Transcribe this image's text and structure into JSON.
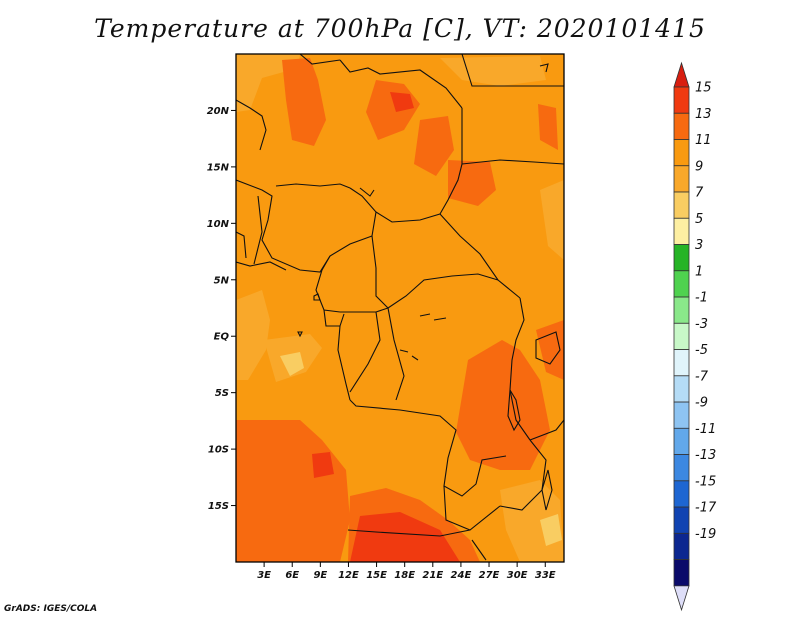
{
  "title": "Temperature at 700hPa [C], VT: 2020101415",
  "footer": "GrADS: IGES/COLA",
  "map": {
    "variable": "Temperature at 700hPa",
    "units": "C",
    "lon_range": [
      0,
      35
    ],
    "lat_range": [
      -20,
      25
    ],
    "lat_ticks": [
      {
        "value": 20,
        "label": "20N"
      },
      {
        "value": 15,
        "label": "15N"
      },
      {
        "value": 10,
        "label": "10N"
      },
      {
        "value": 5,
        "label": "5N"
      },
      {
        "value": 0,
        "label": "EQ"
      },
      {
        "value": -5,
        "label": "5S"
      },
      {
        "value": -10,
        "label": "10S"
      },
      {
        "value": -15,
        "label": "15S"
      }
    ],
    "lon_ticks": [
      {
        "value": 3,
        "label": "3E"
      },
      {
        "value": 6,
        "label": "6E"
      },
      {
        "value": 9,
        "label": "9E"
      },
      {
        "value": 12,
        "label": "12E"
      },
      {
        "value": 15,
        "label": "15E"
      },
      {
        "value": 18,
        "label": "18E"
      },
      {
        "value": 21,
        "label": "21E"
      },
      {
        "value": 24,
        "label": "24E"
      },
      {
        "value": 27,
        "label": "27E"
      },
      {
        "value": 30,
        "label": "30E"
      },
      {
        "value": 33,
        "label": "33E"
      }
    ]
  },
  "colorbar": {
    "levels": [
      "15",
      "13",
      "11",
      "9",
      "7",
      "5",
      "3",
      "1",
      "-1",
      "-3",
      "-5",
      "-7",
      "-9",
      "-11",
      "-13",
      "-15",
      "-17",
      "-19"
    ],
    "colors": [
      "#f03a10",
      "#f76a10",
      "#f99a10",
      "#f9a82a",
      "#f9cd62",
      "#fdefa2",
      "#26b426",
      "#4fd24f",
      "#8ae88a",
      "#c8f8c8",
      "#e0f4fb",
      "#b5dcf6",
      "#8ec4f2",
      "#62a8ea",
      "#3c88e1",
      "#1e66d2",
      "#1043b2",
      "#0c2790",
      "#0a0a6a"
    ],
    "top_color": "#d81e10",
    "bottom_color": "#dedef8"
  }
}
